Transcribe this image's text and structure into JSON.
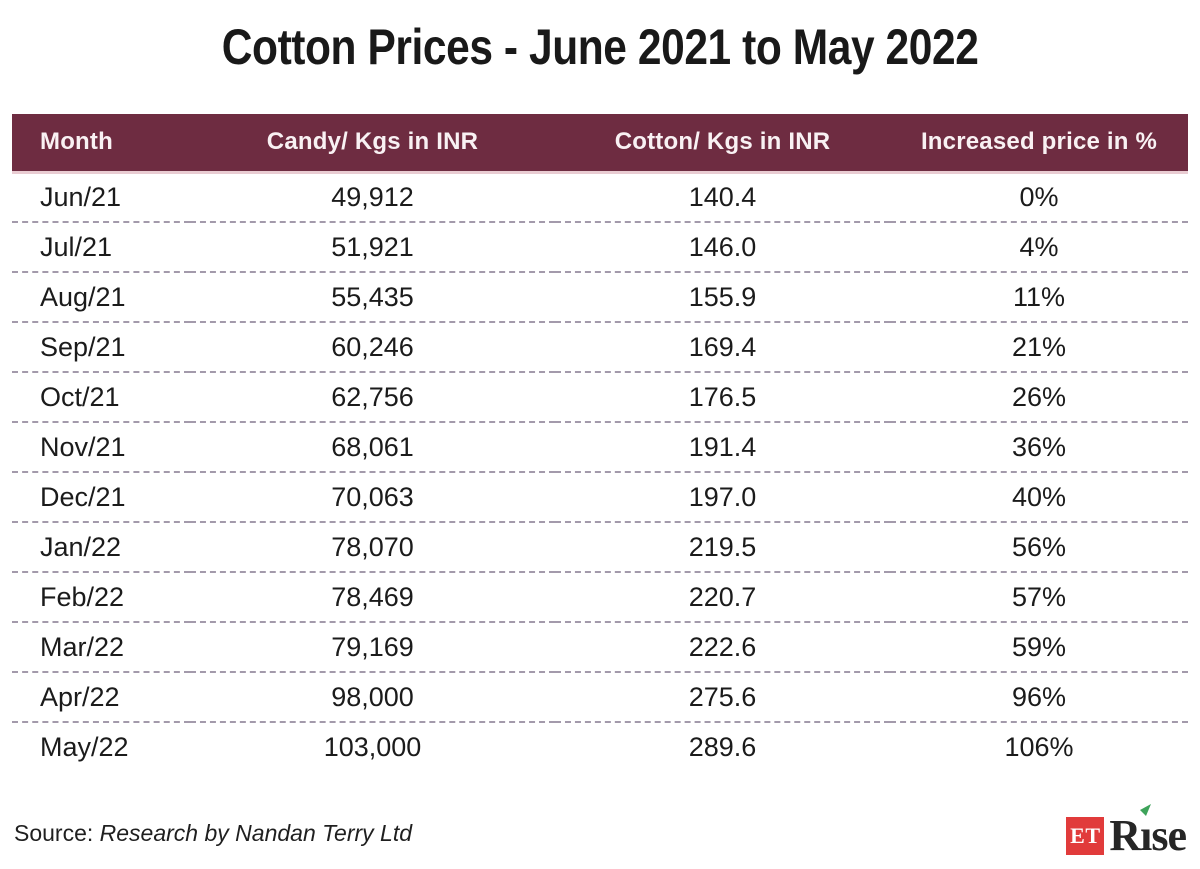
{
  "title": "Cotton Prices - June 2021 to May 2022",
  "table": {
    "columns": [
      "Month",
      "Candy/ Kgs in INR",
      "Cotton/ Kgs in INR",
      "Increased price in %"
    ],
    "rows": [
      [
        "Jun/21",
        "49,912",
        "140.4",
        "0%"
      ],
      [
        "Jul/21",
        "51,921",
        "146.0",
        "4%"
      ],
      [
        "Aug/21",
        "55,435",
        "155.9",
        "11%"
      ],
      [
        "Sep/21",
        "60,246",
        "169.4",
        "21%"
      ],
      [
        "Oct/21",
        "62,756",
        "176.5",
        "26%"
      ],
      [
        "Nov/21",
        "68,061",
        "191.4",
        "36%"
      ],
      [
        "Dec/21",
        "70,063",
        "197.0",
        "40%"
      ],
      [
        "Jan/22",
        "78,070",
        "219.5",
        "56%"
      ],
      [
        "Feb/22",
        "78,469",
        "220.7",
        "57%"
      ],
      [
        "Mar/22",
        "79,169",
        "222.6",
        "59%"
      ],
      [
        "Apr/22",
        "98,000",
        "275.6",
        "96%"
      ],
      [
        "May/22",
        "103,000",
        "289.6",
        "106%"
      ]
    ]
  },
  "chart_data": {
    "type": "table",
    "title": "Cotton Prices - June 2021 to May 2022",
    "columns": [
      "Month",
      "Candy/ Kgs in INR",
      "Cotton/ Kgs in INR",
      "Increased price in %"
    ],
    "months": [
      "Jun/21",
      "Jul/21",
      "Aug/21",
      "Sep/21",
      "Oct/21",
      "Nov/21",
      "Dec/21",
      "Jan/22",
      "Feb/22",
      "Mar/22",
      "Apr/22",
      "May/22"
    ],
    "series": [
      {
        "name": "Candy/ Kgs in INR",
        "values": [
          49912,
          51921,
          55435,
          60246,
          62756,
          68061,
          70063,
          78070,
          78469,
          79169,
          98000,
          103000
        ]
      },
      {
        "name": "Cotton/ Kgs in INR",
        "values": [
          140.4,
          146.0,
          155.9,
          169.4,
          176.5,
          191.4,
          197.0,
          219.5,
          220.7,
          222.6,
          275.6,
          289.6
        ]
      },
      {
        "name": "Increased price in %",
        "values": [
          0,
          4,
          11,
          21,
          26,
          36,
          40,
          56,
          57,
          59,
          96,
          106
        ]
      }
    ]
  },
  "footer": {
    "source_label": "Source:",
    "source_text": "Research by Nandan Terry Ltd"
  },
  "logo": {
    "et_text": "ET",
    "rise_r": "R",
    "rise_i": "ı",
    "rise_se": "se"
  },
  "colors": {
    "header_bg": "#6E2C41",
    "header_text": "#F9F1F3",
    "header_edge": "#E9CCD2",
    "divider": "#A39AAB",
    "et_red": "#E13B3B",
    "rise_green": "#3DA35A"
  }
}
